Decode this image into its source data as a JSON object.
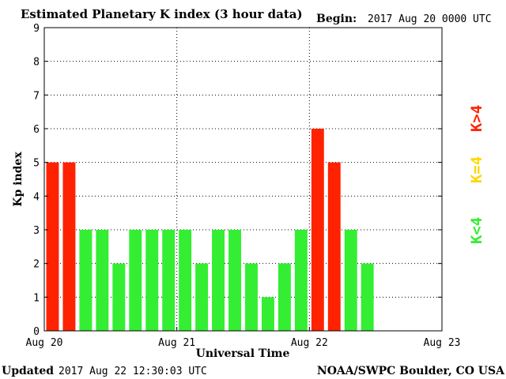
{
  "header": {
    "title": "Estimated Planetary K index (3 hour data)",
    "begin_label": "Begin:",
    "begin_value": "2017 Aug 20 0000 UTC"
  },
  "footer": {
    "updated_label": "Updated",
    "updated_value": "2017 Aug 22 12:30:03 UTC",
    "credit": "NOAA/SWPC Boulder, CO USA"
  },
  "legend": {
    "above": {
      "text": "K>4",
      "color": "#ff2200"
    },
    "equal": {
      "text": "K=4",
      "color": "#ffd700"
    },
    "below": {
      "text": "K<4",
      "color": "#33ee33"
    }
  },
  "chart_data": {
    "type": "bar",
    "title": "Estimated Planetary K index (3 hour data)",
    "xlabel": "Universal Time",
    "ylabel": "Kp index",
    "ylim": [
      0,
      9
    ],
    "yticks": [
      0,
      1,
      2,
      3,
      4,
      5,
      6,
      7,
      8,
      9
    ],
    "xticks": [
      "Aug 20",
      "Aug 21",
      "Aug 22",
      "Aug 23"
    ],
    "grid": true,
    "bar_interval_hours": 3,
    "values": [
      5,
      5,
      3,
      3,
      2,
      3,
      3,
      3,
      3,
      2,
      3,
      3,
      2,
      1,
      2,
      3,
      6,
      5,
      3,
      2
    ],
    "colors": {
      "below_4": "#33ee33",
      "equal_4": "#ffd700",
      "above_4": "#ff2200"
    }
  }
}
